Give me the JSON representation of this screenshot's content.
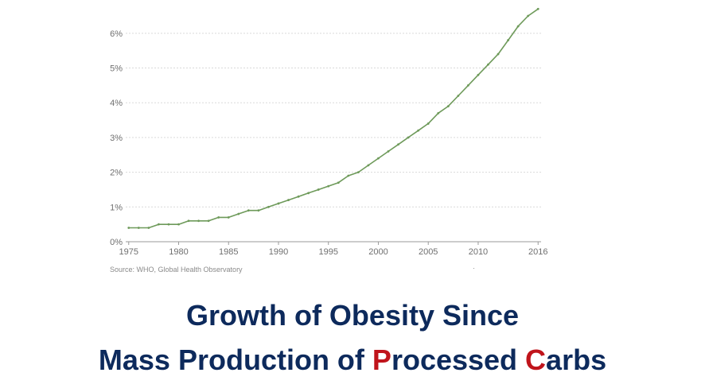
{
  "chart_data": {
    "type": "line",
    "x": [
      1975,
      1976,
      1977,
      1978,
      1979,
      1980,
      1981,
      1982,
      1983,
      1984,
      1985,
      1986,
      1987,
      1988,
      1989,
      1990,
      1991,
      1992,
      1993,
      1994,
      1995,
      1996,
      1997,
      1998,
      1999,
      2000,
      2001,
      2002,
      2003,
      2004,
      2005,
      2006,
      2007,
      2008,
      2009,
      2010,
      2011,
      2012,
      2013,
      2014,
      2015,
      2016
    ],
    "series": [
      {
        "values": [
          0.4,
          0.4,
          0.4,
          0.5,
          0.5,
          0.5,
          0.6,
          0.6,
          0.6,
          0.7,
          0.7,
          0.8,
          0.9,
          0.9,
          1.0,
          1.1,
          1.2,
          1.3,
          1.4,
          1.5,
          1.6,
          1.7,
          1.9,
          2.0,
          2.2,
          2.4,
          2.6,
          2.8,
          3.0,
          3.2,
          3.4,
          3.7,
          3.9,
          4.2,
          4.5,
          4.8,
          5.1,
          5.4,
          5.8,
          6.2,
          6.5,
          6.7
        ],
        "color": "#6e9a5a"
      }
    ],
    "xticks": [
      "1975",
      "1980",
      "1985",
      "1990",
      "1995",
      "2000",
      "2005",
      "2010",
      "2016"
    ],
    "xtick_values": [
      1975,
      1980,
      1985,
      1990,
      1995,
      2000,
      2005,
      2010,
      2016
    ],
    "yticks": [
      "0%",
      "1%",
      "2%",
      "3%",
      "4%",
      "5%",
      "6%"
    ],
    "ytick_values": [
      0,
      1,
      2,
      3,
      4,
      5,
      6
    ],
    "ylim": [
      0,
      6.5
    ],
    "xlim": [
      1974.7,
      2016.3
    ],
    "grid": true,
    "title": "",
    "xlabel": "",
    "ylabel": ""
  },
  "source": "Source: WHO, Global Health Observatory",
  "footnote_mark": "·",
  "headline": {
    "line1": "Growth of Obesity Since",
    "line2_a": "Mass Production of ",
    "line2_p": "P",
    "line2_b": "rocessed ",
    "line2_c": "C",
    "line2_d": "arbs"
  },
  "colors": {
    "headline": "#0d2a5c",
    "accent": "#c0141b",
    "line": "#6e9a5a",
    "grid": "#d9d9d9",
    "axis_text": "#6f6f6f"
  }
}
